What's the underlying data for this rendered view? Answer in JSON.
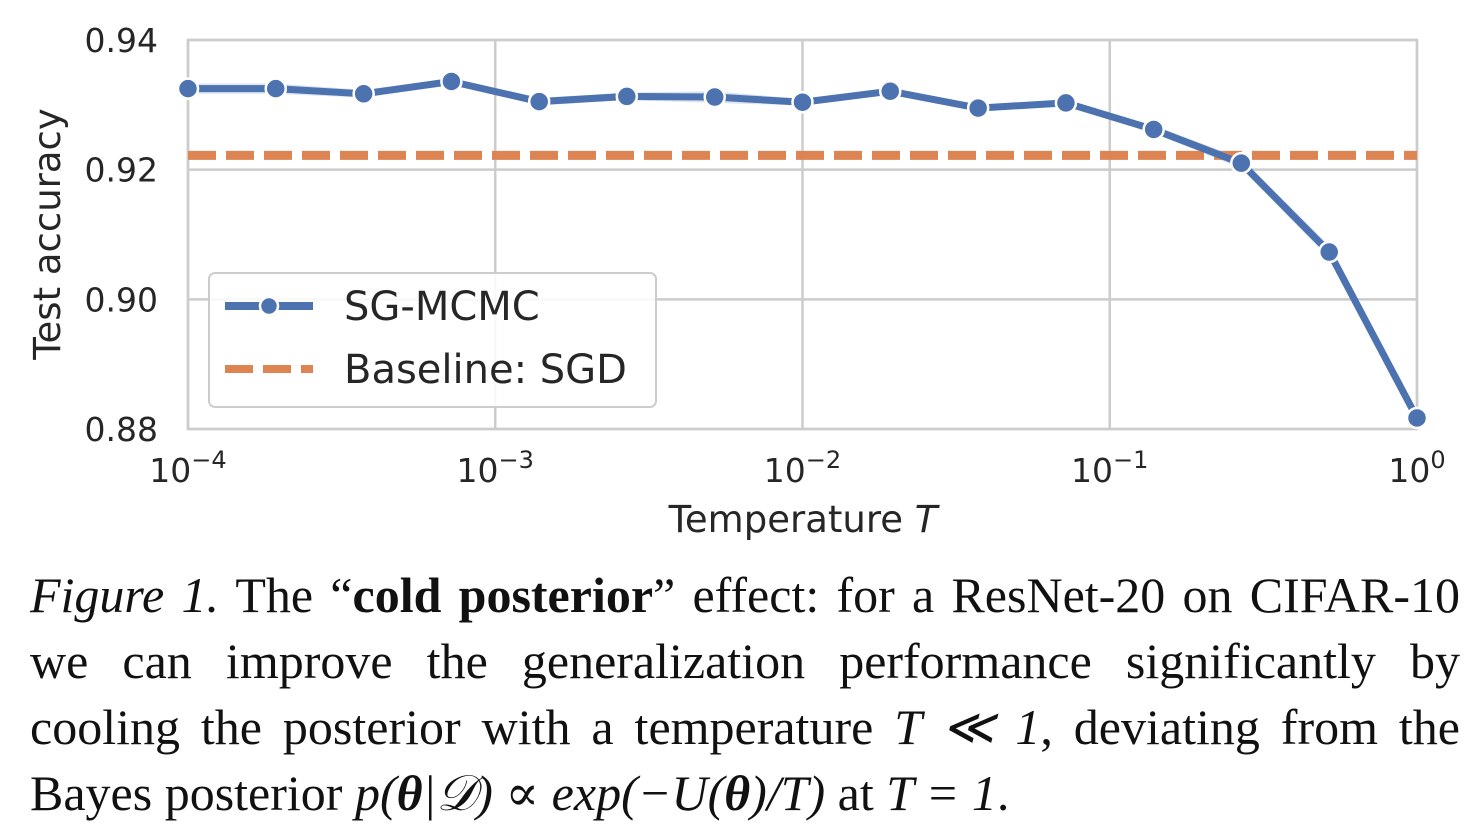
{
  "chart_data": {
    "type": "line",
    "x_scale": "log",
    "xlabel": "Temperature",
    "xlabel_italic": "T",
    "ylabel": "Test accuracy",
    "xlim": [
      0.0001,
      1
    ],
    "ylim": [
      0.88,
      0.94
    ],
    "x_ticks": [
      {
        "base": "10",
        "exp": "−4"
      },
      {
        "base": "10",
        "exp": "−3"
      },
      {
        "base": "10",
        "exp": "−2"
      },
      {
        "base": "10",
        "exp": "−1"
      },
      {
        "base": "10",
        "exp": "0"
      }
    ],
    "y_ticks": [
      "0.88",
      "0.90",
      "0.92",
      "0.94"
    ],
    "grid": true,
    "legend_position": "lower-left",
    "series": [
      {
        "name": "SG-MCMC",
        "color": "#4c72b0",
        "x": [
          0.0001,
          0.000193,
          0.000373,
          0.00072,
          0.00139,
          0.00268,
          0.00518,
          0.01,
          0.0193,
          0.0373,
          0.072,
          0.139,
          0.268,
          0.518,
          1.0
        ],
        "y": [
          0.9325,
          0.9325,
          0.9317,
          0.9336,
          0.9305,
          0.9313,
          0.9312,
          0.9304,
          0.9321,
          0.9295,
          0.9303,
          0.9262,
          0.921,
          0.9073,
          0.8817
        ],
        "band_halfwidth": [
          0.0008,
          0.0008,
          0.0006,
          0.0005,
          0.0006,
          0.0006,
          0.0009,
          0.0005,
          0.0005,
          0.0005,
          0.0005,
          0.0006,
          0.0008,
          0.001,
          0.001
        ]
      },
      {
        "name": "Baseline: SGD",
        "color": "#dd8452",
        "style": "dashed",
        "y": 0.9222
      }
    ]
  },
  "caption": {
    "fig_label": "Figure 1.",
    "pre_bold": " The “",
    "bold": "cold posterior",
    "post_bold": "” effect: for a ResNet-20 on CIFAR-10 we can improve the generalization performance significantly by cooling the posterior with a temperature ",
    "math1": "T ≪ 1",
    "mid": ", deviating from the Bayes posterior ",
    "math2_p": "p(",
    "math2_theta": "θ",
    "math2_rest": "|𝒟) ∝ exp(−U(",
    "math2_theta2": "θ",
    "math2_end": ")/T)",
    "at": " at ",
    "math3": "T = 1",
    "end": "."
  }
}
